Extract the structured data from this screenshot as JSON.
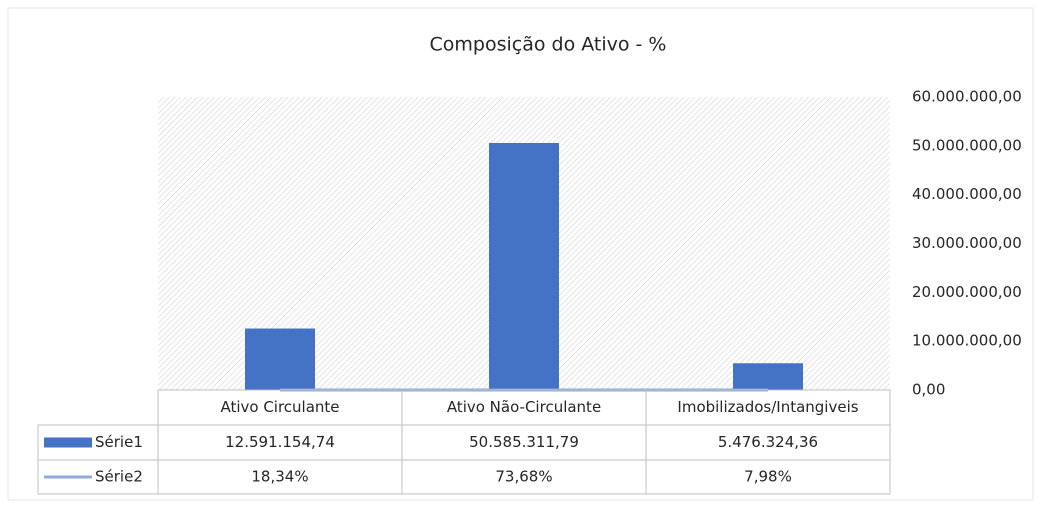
{
  "chart_data": {
    "type": "bar",
    "title": "Composição do Ativo -  %",
    "categories": [
      "Ativo Circulante",
      "Ativo Não-Circulante",
      "Imobilizados/Intangiveis"
    ],
    "series": [
      {
        "name": "Série1",
        "color": "#4472c4",
        "values": [
          12591154.74,
          50585311.79,
          5476324.36
        ],
        "value_labels": [
          "12.591.154,74",
          "50.585.311,79",
          "5.476.324,36"
        ]
      },
      {
        "name": "Série2",
        "type": "line",
        "color": "#8faadc",
        "values": [
          0.1834,
          0.7368,
          0.0798
        ],
        "value_labels": [
          "18,34%",
          "73,68%",
          "7,98%"
        ]
      }
    ],
    "ylim": [
      0,
      60000000
    ],
    "yticks": [
      {
        "value": 0,
        "label": "0,00"
      },
      {
        "value": 10000000,
        "label": "10.000.000,00"
      },
      {
        "value": 20000000,
        "label": "20.000.000,00"
      },
      {
        "value": 30000000,
        "label": "30.000.000,00"
      },
      {
        "value": 40000000,
        "label": "40.000.000,00"
      },
      {
        "value": 50000000,
        "label": "50.000.000,00"
      },
      {
        "value": 60000000,
        "label": "60.000.000,00"
      }
    ]
  }
}
